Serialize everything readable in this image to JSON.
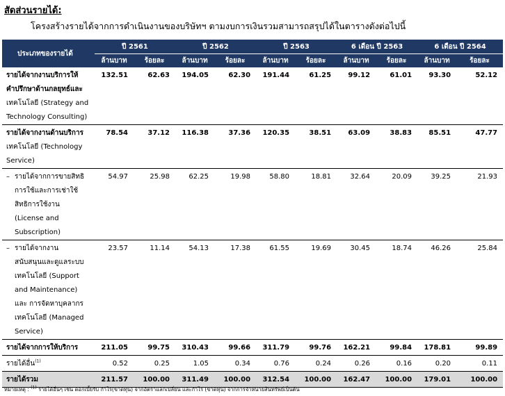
{
  "heading": "สัดส่วนรายได้:",
  "subheading": "โครงสร้างรายได้จากการดำเนินงานของบริษัทฯ ตามงบการเงินรวมสามารถสรุปได้ในตารางดังต่อไปนี้",
  "table": {
    "col_header": "ประเภทของรายได้",
    "periods": [
      "ปี 2561",
      "ปี 2562",
      "ปี 2563",
      "6 เดือน ปี 2563",
      "6 เดือน ปี 2564"
    ],
    "unit_mb": "ล้านบาท",
    "unit_pct": "ร้อยละ",
    "rows": [
      {
        "label_lines": [
          "รายได้จากงานบริการให้",
          "คำปรึกษาด้านกลยุทธ์และ",
          "เทคโนโลยี (Strategy and",
          "Technology Consulting)"
        ],
        "values": [
          "132.51",
          "62.63",
          "194.05",
          "62.30",
          "191.44",
          "61.25",
          "99.12",
          "61.01",
          "93.30",
          "52.12"
        ]
      },
      {
        "label_lines": [
          "รายได้จากงานด้านบริการ",
          "เทคโนโลยี (Technology",
          "Service)"
        ],
        "values": [
          "78.54",
          "37.12",
          "116.38",
          "37.36",
          "120.35",
          "38.51",
          "63.09",
          "38.83",
          "85.51",
          "47.77"
        ]
      },
      {
        "label_lines": [
          "รายได้จากการขายสิทธิ",
          "การใช้และการเช่าใช้",
          "สิทธิการใช้งาน",
          "(License and",
          "Subscription)"
        ],
        "values": [
          "54.97",
          "25.98",
          "62.25",
          "19.98",
          "58.80",
          "18.81",
          "32.64",
          "20.09",
          "39.25",
          "21.93"
        ]
      },
      {
        "label_lines": [
          "รายได้จากงาน",
          "สนับสนุนและดูแลระบบ",
          "เทคโนโลยี (Support",
          "and Maintenance)",
          "และ การจัดหาบุคลากร",
          "เทคโนโลยี (Managed",
          "Service)"
        ],
        "values": [
          "23.57",
          "11.14",
          "54.13",
          "17.38",
          "61.55",
          "19.69",
          "30.45",
          "18.74",
          "46.26",
          "25.84"
        ]
      },
      {
        "label": "รายได้จากการให้บริการ",
        "values": [
          "211.05",
          "99.75",
          "310.43",
          "99.66",
          "311.79",
          "99.76",
          "162.21",
          "99.84",
          "178.81",
          "99.89"
        ]
      },
      {
        "label": "รายได้อื่น",
        "sup": "(1)",
        "values": [
          "0.52",
          "0.25",
          "1.05",
          "0.34",
          "0.76",
          "0.24",
          "0.26",
          "0.16",
          "0.20",
          "0.11"
        ]
      },
      {
        "label": "รายได้รวม",
        "values": [
          "211.57",
          "100.00",
          "311.49",
          "100.00",
          "312.54",
          "100.00",
          "162.47",
          "100.00",
          "179.01",
          "100.00"
        ]
      }
    ]
  },
  "note": {
    "label": "หมายเหตุ :",
    "sup": "(1)",
    "text": "รายได้อื่นๆ เช่น ดอกเบี้ยรับ กำไร(ขาดทุน) จากอัตราแลกเปลี่ยน และกำไร (ขาดทุน) จากการจำหน่ายสินทรัพย์เป็นต้น"
  }
}
